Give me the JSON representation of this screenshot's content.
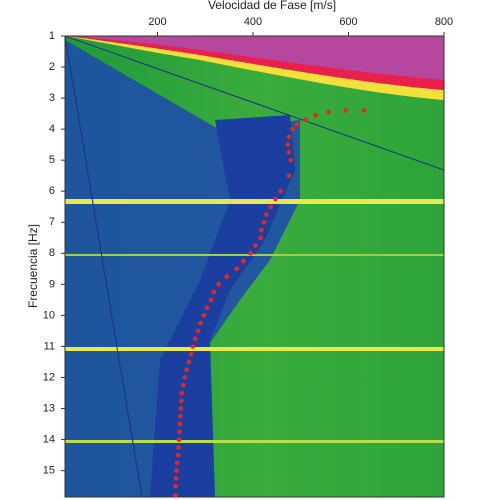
{
  "chart_data": {
    "type": "scatter",
    "x_label": "Velocidad de Fase [m/s]",
    "y_label": "Frecuencia [Hz]",
    "x": [
      632,
      594,
      558,
      531,
      510,
      492,
      483,
      475,
      473,
      475,
      479,
      475,
      458,
      447,
      437,
      428,
      423,
      418,
      416,
      405,
      395,
      380,
      366,
      345,
      328,
      318,
      312,
      304,
      297,
      290,
      285,
      279,
      274,
      270,
      266,
      261,
      257,
      254,
      251,
      250,
      249,
      248,
      247,
      246,
      245,
      244,
      243,
      241,
      240,
      239,
      238,
      238
    ],
    "values": [
      3.4,
      3.4,
      3.45,
      3.55,
      3.7,
      3.85,
      4.0,
      4.25,
      4.5,
      4.75,
      5.0,
      5.5,
      6.0,
      6.25,
      6.5,
      6.75,
      7.0,
      7.25,
      7.5,
      7.75,
      8.0,
      8.25,
      8.5,
      8.75,
      9.0,
      9.25,
      9.5,
      9.75,
      10.0,
      10.25,
      10.5,
      10.75,
      11.0,
      11.25,
      11.5,
      11.75,
      12.0,
      12.25,
      12.5,
      12.75,
      13.0,
      13.25,
      13.5,
      13.75,
      14.0,
      14.25,
      14.5,
      14.75,
      15.0,
      15.25,
      15.5,
      15.8
    ],
    "color": "#e8261f",
    "xlim": [
      0,
      800
    ],
    "xticks": [
      200,
      400,
      600,
      800
    ],
    "ylim": [
      15.85,
      1
    ],
    "yticks": [
      1,
      2,
      3,
      4,
      5,
      6,
      7,
      8,
      9,
      10,
      11,
      12,
      13,
      14,
      15
    ]
  }
}
